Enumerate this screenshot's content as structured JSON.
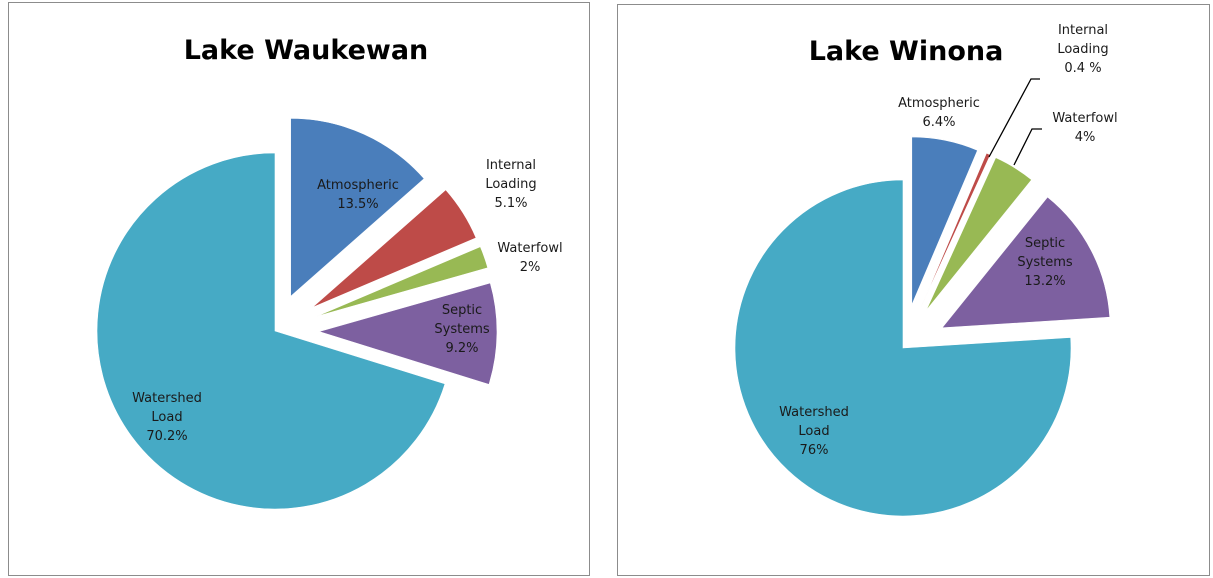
{
  "chart_data": [
    {
      "type": "pie",
      "title": "Lake Waukewan",
      "slices": [
        {
          "name": "Atmospheric",
          "value": 13.5,
          "label": [
            "Atmospheric",
            "13.5%"
          ],
          "color": "#4a7ebb"
        },
        {
          "name": "Internal Loading",
          "value": 5.1,
          "label": [
            "Internal",
            "Loading",
            "5.1%"
          ],
          "color": "#be4b48"
        },
        {
          "name": "Waterfowl",
          "value": 2,
          "label": [
            "Waterfowl",
            "2%"
          ],
          "color": "#98b954"
        },
        {
          "name": "Septic Systems",
          "value": 9.2,
          "label": [
            "Septic",
            "Systems",
            "9.2%"
          ],
          "color": "#7d60a0"
        },
        {
          "name": "Watershed Load",
          "value": 70.2,
          "label": [
            "Watershed",
            "Load",
            "70.2%"
          ],
          "color": "#46aac5"
        }
      ]
    },
    {
      "type": "pie",
      "title": "Lake Winona",
      "slices": [
        {
          "name": "Atmospheric",
          "value": 6.4,
          "label": [
            "Atmospheric",
            "6.4%"
          ],
          "color": "#4a7ebb"
        },
        {
          "name": "Internal Loading",
          "value": 0.4,
          "label": [
            "Internal",
            "Loading",
            "0.4 %"
          ],
          "color": "#be4b48"
        },
        {
          "name": "Waterfowl",
          "value": 4,
          "label": [
            "Waterfowl",
            "4%"
          ],
          "color": "#98b954"
        },
        {
          "name": "Septic Systems",
          "value": 13.2,
          "label": [
            "Septic",
            "Systems",
            "13.2%"
          ],
          "color": "#7d60a0"
        },
        {
          "name": "Watershed Load",
          "value": 76,
          "label": [
            "Watershed",
            "Load",
            "76%"
          ],
          "color": "#46aac5"
        }
      ]
    }
  ]
}
